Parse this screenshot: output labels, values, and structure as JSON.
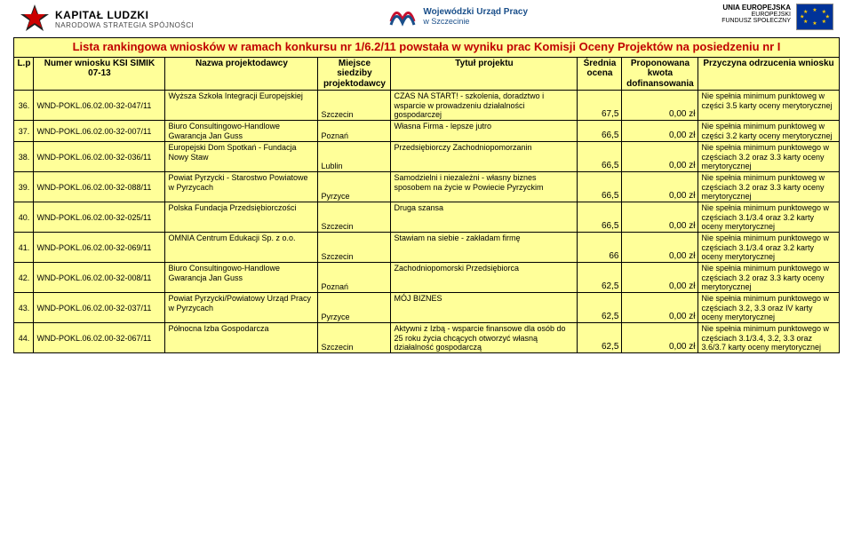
{
  "header": {
    "left": {
      "line1": "KAPITAŁ LUDZKI",
      "line2": "NARODOWA STRATEGIA SPÓJNOŚCI"
    },
    "mid": {
      "line1": "Wojewódzki Urząd Pracy",
      "line2": "w Szczecinie"
    },
    "right": {
      "line1": "UNIA EUROPEJSKA",
      "line2": "EUROPEJSKI",
      "line3": "FUNDUSZ SPOŁECZNY"
    }
  },
  "title": "Lista rankingowa wniosków w ramach konkursu nr 1/6.2/11 powstała w wyniku prac Komisji Oceny Projektów na posiedzeniu nr I",
  "columns": {
    "lp": "L.p",
    "id": "Numer wniosku KSI SIMIK 07-13",
    "applicant": "Nazwa projektodawcy",
    "location": "Miejsce siedziby projektodawcy",
    "project_title": "Tytuł projektu",
    "score": "Średnia ocena",
    "funding": "Proponowana kwota dofinansowania",
    "reason": "Przyczyna odrzucenia wniosku"
  },
  "currency_suffix": "0,00 zł",
  "rows": [
    {
      "lp": "36.",
      "id": "WND-POKL.06.02.00-32-047/11",
      "applicant": "Wyższa Szkoła Integracji Europejskiej",
      "location": "Szczecin",
      "title": "CZAS NA START! - szkolenia, doradztwo i wsparcie w prowadzeniu działalności gospodarczej",
      "score": "67,5",
      "reason": "Nie spełnia minimum punktoweg w części 3.5 karty oceny merytorycznej"
    },
    {
      "lp": "37.",
      "id": "WND-POKL.06.02.00-32-007/11",
      "applicant": "Biuro Consultingowo-Handlowe Gwarancja Jan Guss",
      "location": "Poznań",
      "title": "Własna Firma - lepsze jutro",
      "score": "66,5",
      "reason": "Nie spełnia minimum punktoweg w części 3.2 karty oceny merytorycznej"
    },
    {
      "lp": "38.",
      "id": "WND-POKL.06.02.00-32-036/11",
      "applicant": "Europejski Dom Spotkań - Fundacja Nowy Staw",
      "location": "Lublin",
      "title": "Przedsiębiorczy Zachodniopomorzanin",
      "score": "66,5",
      "reason": "Nie spełnia minimum punktowego w częściach 3.2 oraz 3.3 karty oceny merytorycznej"
    },
    {
      "lp": "39.",
      "id": "WND-POKL.06.02.00-32-088/11",
      "applicant": "Powiat Pyrzycki - Starostwo Powiatowe w Pyrzycach",
      "location": "Pyrzyce",
      "title": "Samodzielni i niezależni - własny biznes sposobem na życie w Powiecie Pyrzyckim",
      "score": "66,5",
      "reason": "Nie spełnia minimum punktoweg w częściach 3.2 oraz 3.3 karty oceny merytorycznej"
    },
    {
      "lp": "40.",
      "id": "WND-POKL.06.02.00-32-025/11",
      "applicant": "Polska Fundacja Przedsiębiorczości",
      "location": "Szczecin",
      "title": "Druga szansa",
      "score": "66,5",
      "reason": "Nie spełnia minimum punktowego w częściach 3.1/3.4 oraz 3.2 karty oceny merytorycznej"
    },
    {
      "lp": "41.",
      "id": "WND-POKL.06.02.00-32-069/11",
      "applicant": "OMNIA Centrum Edukacji Sp. z o.o.",
      "location": "Szczecin",
      "title": "Stawiam na siebie - zakładam firmę",
      "score": "66",
      "reason": "Nie spełnia minimum punktowego w częściach 3.1/3.4 oraz 3.2 karty oceny merytorycznej"
    },
    {
      "lp": "42.",
      "id": "WND-POKL.06.02.00-32-008/11",
      "applicant": "Biuro Consultingowo-Handlowe Gwarancja Jan Guss",
      "location": "Poznań",
      "title": "Zachodniopomorski Przedsiębiorca",
      "score": "62,5",
      "reason": "Nie spełnia minimum punktowego w częściach 3.2 oraz 3.3 karty oceny merytorycznej"
    },
    {
      "lp": "43.",
      "id": "WND-POKL.06.02.00-32-037/11",
      "applicant": "Powiat Pyrzycki/Powiatowy Urząd Pracy w Pyrzycach",
      "location": "Pyrzyce",
      "title": "MÓJ BIZNES",
      "score": "62,5",
      "reason": "Nie spełnia minimum punktowego w częściach 3.2, 3.3 oraz IV karty oceny merytorycznej"
    },
    {
      "lp": "44.",
      "id": "WND-POKL.06.02.00-32-067/11",
      "applicant": "Północna Izba Gospodarcza",
      "location": "Szczecin",
      "title": "Aktywni z Izbą - wsparcie finansowe dla osób do 25 roku życia chcących otworzyć własną działalność gospodarczą",
      "score": "62,5",
      "reason": "Nie spełnia minimum punktowego w częściach 3.1/3.4, 3.2, 3.3 oraz 3.6/3.7 karty oceny merytorycznej"
    }
  ]
}
